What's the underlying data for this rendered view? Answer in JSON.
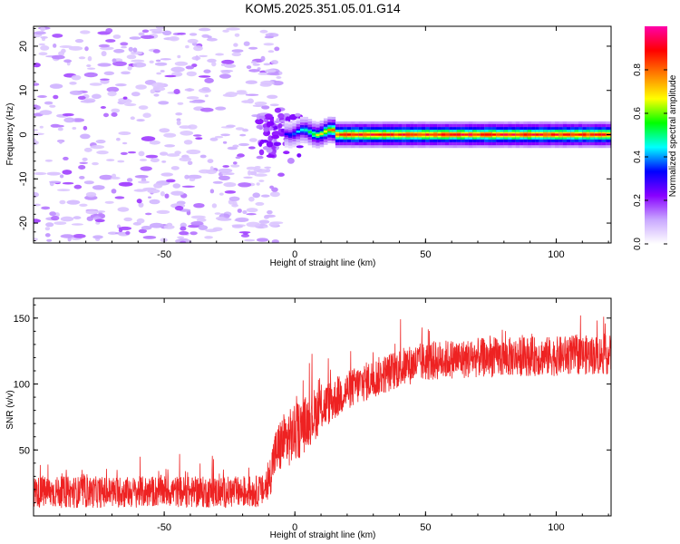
{
  "chart_data": [
    {
      "type": "heatmap",
      "title": "KOM5.2025.351.05.01.G14",
      "xlabel": "Height of straight line (km)",
      "ylabel": "Frequency (Hz)",
      "xlim": [
        -100,
        121
      ],
      "ylim": [
        -24.5,
        24.5
      ],
      "xticks": [
        -50,
        0,
        50,
        100
      ],
      "yticks": [
        -20,
        -10,
        0,
        10,
        20
      ],
      "colorbar": {
        "label": "Normalized spectral amplitude",
        "range": [
          0,
          1
        ],
        "ticks": [
          0.0,
          0.2,
          0.4,
          0.6,
          0.8
        ],
        "colormap": [
          "#ffffff",
          "#c9a8ff",
          "#8800ff",
          "#0000ff",
          "#00ffff",
          "#00ff00",
          "#ffff00",
          "#ff8000",
          "#ff0000",
          "#ff00aa"
        ]
      },
      "description_values": {
        "noise_region_km": [
          -100,
          -12
        ],
        "transition_km": [
          -12,
          20
        ],
        "steady_line_frequency_hz": 0,
        "steady_line_amplitude": 0.9
      }
    },
    {
      "type": "line",
      "xlabel": "Height of straight line (km)",
      "ylabel": "SNR (v/v)",
      "xlim": [
        -100,
        121
      ],
      "ylim": [
        0,
        165
      ],
      "xticks": [
        -50,
        0,
        50,
        100
      ],
      "yticks": [
        50,
        100,
        150
      ],
      "series": [
        {
          "name": "SNR",
          "color": "#ee2222",
          "x": [
            -100,
            -90,
            -80,
            -70,
            -60,
            -50,
            -40,
            -30,
            -20,
            -12,
            -10,
            -8,
            -5,
            -3,
            0,
            3,
            5,
            8,
            10,
            15,
            20,
            25,
            30,
            35,
            40,
            45,
            50,
            55,
            60,
            65,
            70,
            75,
            80,
            85,
            90,
            95,
            100,
            105,
            110,
            115,
            121
          ],
          "values": [
            18,
            18,
            18,
            18,
            18,
            19,
            18,
            18,
            18,
            19,
            25,
            45,
            55,
            58,
            62,
            68,
            72,
            78,
            82,
            88,
            95,
            100,
            104,
            108,
            112,
            115,
            117,
            118,
            119,
            119,
            120,
            120,
            120,
            121,
            121,
            121,
            121,
            122,
            122,
            122,
            122
          ],
          "noise_amplitude": [
            12,
            12,
            12,
            12,
            12,
            12,
            12,
            12,
            12,
            12,
            15,
            18,
            22,
            22,
            22,
            22,
            20,
            20,
            18,
            16,
            15,
            15,
            15,
            15,
            15,
            15,
            15,
            15,
            15,
            15,
            15,
            15,
            15,
            15,
            15,
            15,
            15,
            15,
            15,
            15,
            15
          ]
        }
      ]
    }
  ]
}
